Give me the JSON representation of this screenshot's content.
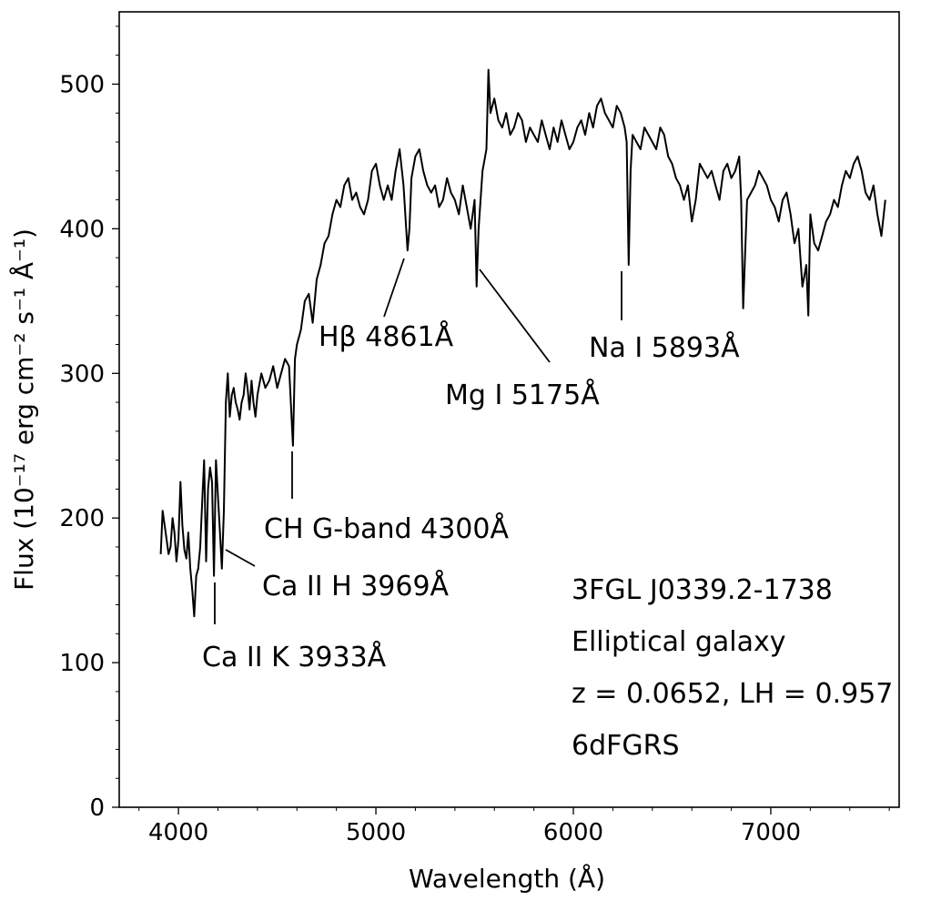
{
  "chart_data": {
    "type": "line",
    "xlabel": "Wavelength (Å)",
    "ylabel": "Flux (10⁻¹⁷ erg cm⁻² s⁻¹ Å⁻¹)",
    "xlim": [
      3700,
      7650
    ],
    "ylim": [
      0,
      550
    ],
    "x_ticks": [
      4000,
      5000,
      6000,
      7000
    ],
    "y_ticks": [
      0,
      100,
      200,
      300,
      400,
      500
    ],
    "grid": false,
    "series": [
      {
        "x": [
          3910,
          3920,
          3930,
          3940,
          3950,
          3960,
          3970,
          3980,
          3990,
          4000,
          4010,
          4020,
          4030,
          4040,
          4050,
          4060,
          4070,
          4080,
          4090,
          4100,
          4110,
          4120,
          4130,
          4140,
          4150,
          4160,
          4170,
          4180,
          4190,
          4200,
          4210,
          4220,
          4230,
          4240,
          4250,
          4260,
          4270,
          4280,
          4290,
          4300,
          4310,
          4320,
          4330,
          4340,
          4350,
          4360,
          4370,
          4380,
          4390,
          4400,
          4420,
          4440,
          4460,
          4480,
          4500,
          4520,
          4540,
          4560,
          4580,
          4590,
          4600,
          4620,
          4640,
          4660,
          4680,
          4700,
          4720,
          4740,
          4760,
          4780,
          4800,
          4820,
          4840,
          4860,
          4880,
          4900,
          4920,
          4940,
          4960,
          4980,
          5000,
          5020,
          5040,
          5060,
          5080,
          5100,
          5120,
          5140,
          5160,
          5170,
          5180,
          5200,
          5220,
          5240,
          5260,
          5280,
          5300,
          5320,
          5340,
          5360,
          5380,
          5400,
          5420,
          5440,
          5460,
          5480,
          5500,
          5510,
          5520,
          5540,
          5560,
          5570,
          5580,
          5600,
          5620,
          5640,
          5660,
          5680,
          5700,
          5720,
          5740,
          5760,
          5780,
          5800,
          5820,
          5840,
          5860,
          5880,
          5900,
          5920,
          5940,
          5960,
          5980,
          6000,
          6020,
          6040,
          6060,
          6080,
          6100,
          6120,
          6140,
          6160,
          6180,
          6200,
          6220,
          6240,
          6260,
          6270,
          6280,
          6290,
          6300,
          6320,
          6340,
          6360,
          6380,
          6400,
          6420,
          6440,
          6460,
          6480,
          6500,
          6520,
          6540,
          6560,
          6580,
          6600,
          6620,
          6640,
          6660,
          6680,
          6700,
          6720,
          6740,
          6760,
          6780,
          6800,
          6820,
          6840,
          6850,
          6860,
          6880,
          6900,
          6920,
          6940,
          6960,
          6980,
          7000,
          7020,
          7040,
          7060,
          7080,
          7100,
          7120,
          7140,
          7160,
          7180,
          7190,
          7200,
          7220,
          7240,
          7260,
          7280,
          7300,
          7320,
          7340,
          7360,
          7380,
          7400,
          7420,
          7440,
          7460,
          7480,
          7500,
          7520,
          7540,
          7560,
          7580
        ],
        "y": [
          175,
          205,
          195,
          185,
          175,
          180,
          200,
          190,
          170,
          185,
          225,
          195,
          178,
          172,
          190,
          165,
          150,
          132,
          160,
          165,
          180,
          210,
          240,
          170,
          220,
          235,
          225,
          160,
          240,
          215,
          190,
          165,
          205,
          280,
          300,
          270,
          285,
          290,
          280,
          275,
          268,
          280,
          285,
          300,
          290,
          275,
          295,
          280,
          270,
          285,
          300,
          290,
          295,
          305,
          290,
          300,
          310,
          305,
          250,
          310,
          320,
          330,
          350,
          355,
          335,
          365,
          375,
          390,
          395,
          410,
          420,
          415,
          430,
          435,
          420,
          425,
          415,
          410,
          420,
          440,
          445,
          430,
          420,
          430,
          420,
          440,
          455,
          430,
          385,
          400,
          435,
          450,
          455,
          440,
          430,
          425,
          430,
          415,
          420,
          435,
          425,
          420,
          410,
          430,
          415,
          400,
          420,
          360,
          400,
          440,
          455,
          510,
          480,
          490,
          475,
          470,
          480,
          465,
          470,
          480,
          475,
          460,
          470,
          465,
          460,
          475,
          465,
          455,
          470,
          460,
          475,
          465,
          455,
          460,
          470,
          475,
          465,
          480,
          470,
          485,
          490,
          480,
          475,
          470,
          485,
          480,
          470,
          460,
          375,
          440,
          465,
          460,
          455,
          470,
          465,
          460,
          455,
          470,
          465,
          450,
          445,
          435,
          430,
          420,
          430,
          405,
          420,
          445,
          440,
          435,
          440,
          430,
          420,
          440,
          445,
          435,
          440,
          450,
          420,
          345,
          420,
          425,
          430,
          440,
          435,
          430,
          420,
          415,
          405,
          420,
          425,
          410,
          390,
          400,
          360,
          375,
          340,
          410,
          390,
          385,
          395,
          405,
          410,
          420,
          415,
          430,
          440,
          435,
          445,
          450,
          440,
          425,
          420,
          430,
          410,
          395,
          420
        ]
      }
    ],
    "annotations": [
      {
        "text": "Ca II K 3933Å"
      },
      {
        "text": "Ca II H 3969Å"
      },
      {
        "text": "CH G-band 4300Å"
      },
      {
        "text": "Hβ 4861Å"
      },
      {
        "text": "Mg I 5175Å"
      },
      {
        "text": "Na I 5893Å"
      }
    ],
    "info_box": [
      "3FGL J0339.2-1738",
      "Elliptical galaxy",
      "z = 0.0652, LH = 0.957",
      "6dFGRS"
    ]
  }
}
